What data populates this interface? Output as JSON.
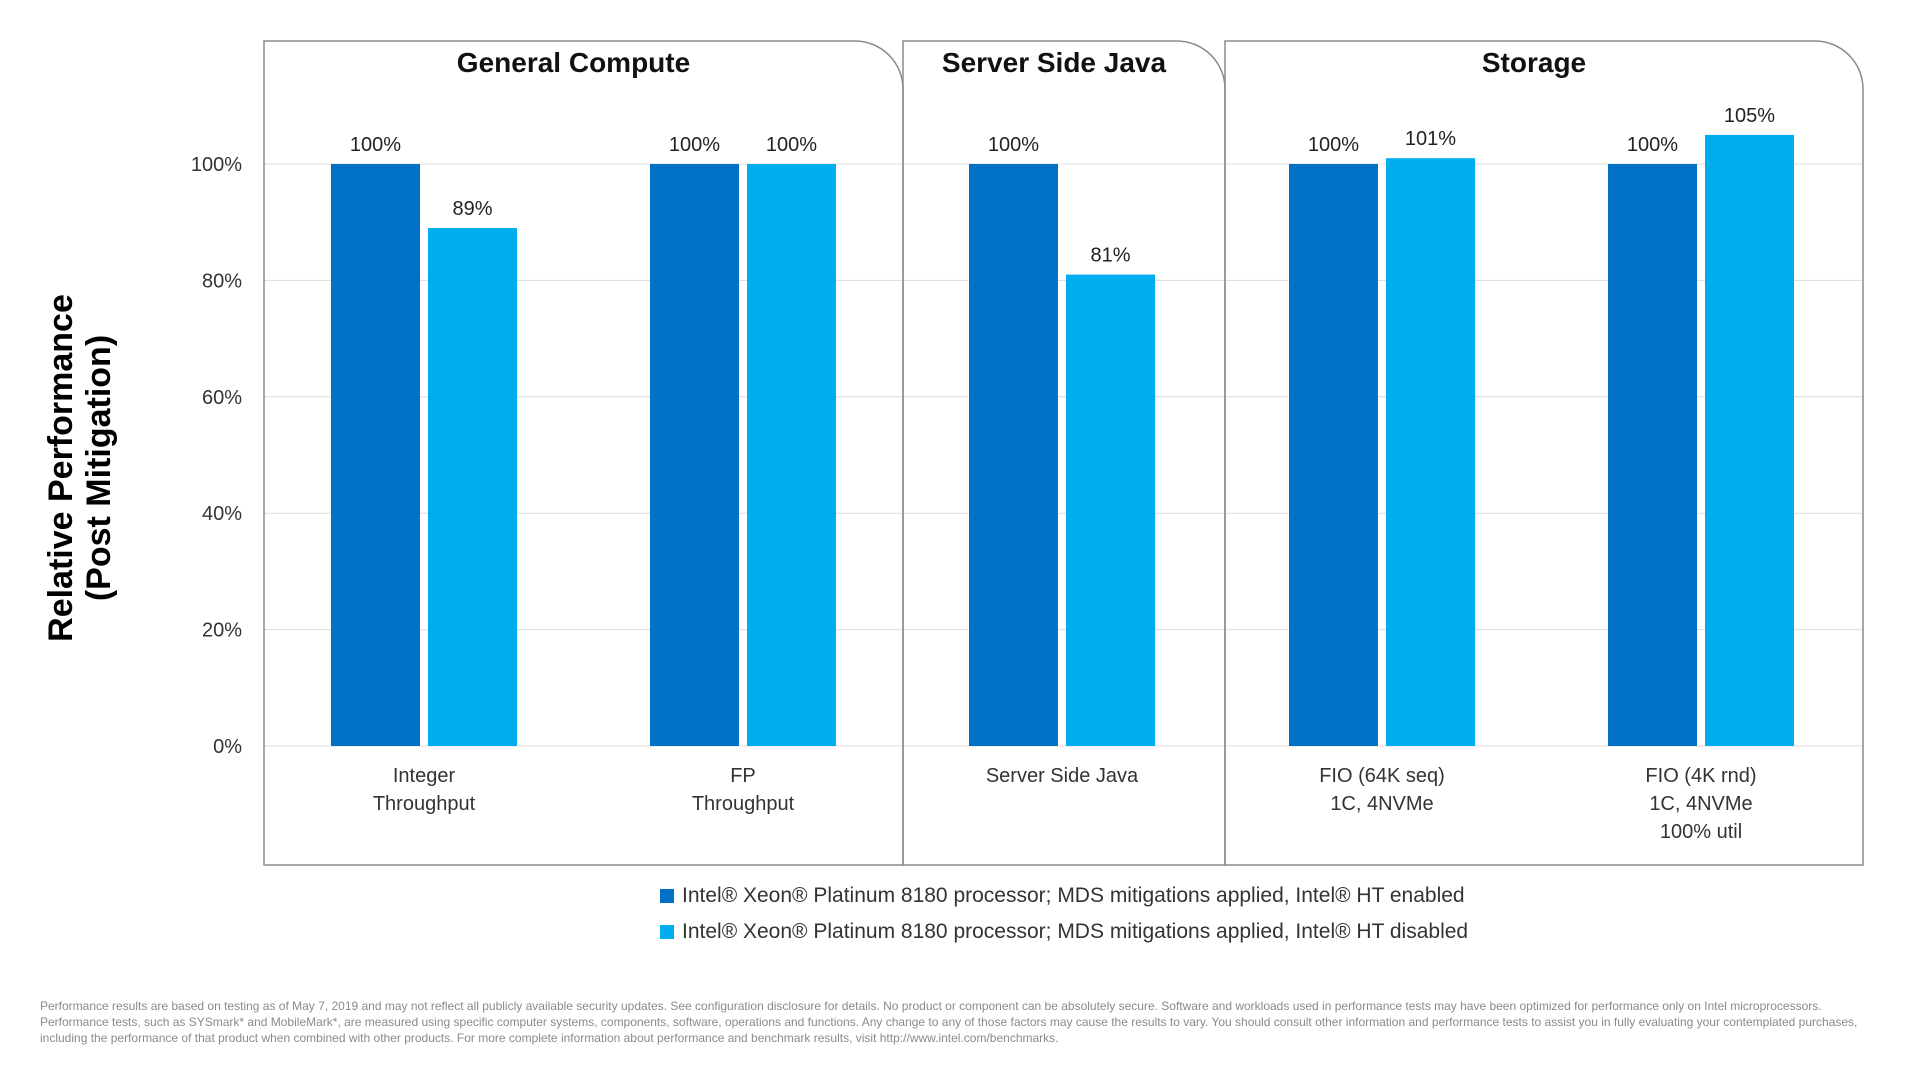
{
  "chart_data": {
    "type": "bar",
    "ylabel_lines": [
      "Relative Performance",
      "(Post Mitigation)"
    ],
    "ylim": [
      0,
      100
    ],
    "yticks": [
      "0%",
      "20%",
      "40%",
      "60%",
      "80%",
      "100%"
    ],
    "grid": true,
    "panels": [
      {
        "title": "General Compute",
        "category_indices": [
          0,
          1
        ]
      },
      {
        "title": "Server Side Java",
        "category_indices": [
          2
        ]
      },
      {
        "title": "Storage",
        "category_indices": [
          3,
          4
        ]
      }
    ],
    "categories": [
      [
        "Integer",
        "Throughput"
      ],
      [
        "FP",
        "Throughput"
      ],
      [
        "Server Side Java"
      ],
      [
        "FIO (64K seq)",
        "1C, 4NVMe"
      ],
      [
        "FIO (4K rnd)",
        "1C, 4NVMe",
        "100% util"
      ]
    ],
    "series": [
      {
        "name": "Intel® Xeon® Platinum 8180 processor; MDS mitigations applied, Intel® HT enabled",
        "color": "#0071c5",
        "values": [
          100,
          100,
          100,
          100,
          100
        ],
        "labels": [
          "100%",
          "100%",
          "100%",
          "100%",
          "100%"
        ]
      },
      {
        "name": "Intel® Xeon® Platinum 8180 processor; MDS mitigations applied, Intel® HT disabled",
        "color": "#00aeef",
        "values": [
          89,
          100,
          81,
          101,
          105
        ],
        "labels": [
          "89%",
          "100%",
          "81%",
          "101%",
          "105%"
        ]
      }
    ],
    "legend_position": "bottom"
  },
  "footnote": "Performance results are based on testing as of May 7, 2019 and may not reflect all publicly available security updates. See configuration disclosure for details. No product or component can be absolutely secure. Software and workloads used in performance tests may have been optimized for performance only on Intel microprocessors. Performance tests, such as SYSmark* and MobileMark*, are measured using specific computer systems, components, software, operations and functions. Any change to any of those factors may cause the results to vary. You should consult other information and performance tests to assist you in fully evaluating your contemplated purchases, including the performance of that product when combined with other products. For more complete information about performance and benchmark results, visit http://www.intel.com/benchmarks."
}
